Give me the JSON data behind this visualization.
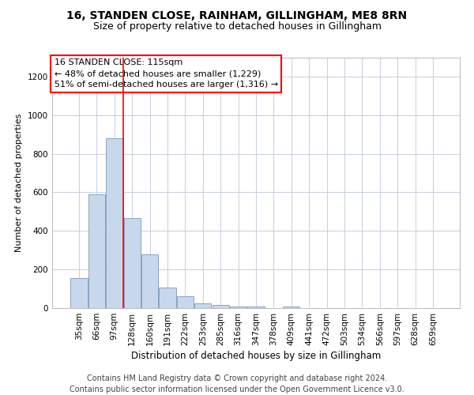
{
  "title_line1": "16, STANDEN CLOSE, RAINHAM, GILLINGHAM, ME8 8RN",
  "title_line2": "Size of property relative to detached houses in Gillingham",
  "xlabel": "Distribution of detached houses by size in Gillingham",
  "ylabel": "Number of detached properties",
  "categories": [
    "35sqm",
    "66sqm",
    "97sqm",
    "128sqm",
    "160sqm",
    "191sqm",
    "222sqm",
    "253sqm",
    "285sqm",
    "316sqm",
    "347sqm",
    "378sqm",
    "409sqm",
    "441sqm",
    "472sqm",
    "503sqm",
    "534sqm",
    "566sqm",
    "597sqm",
    "628sqm",
    "659sqm"
  ],
  "values": [
    155,
    590,
    880,
    465,
    280,
    105,
    60,
    25,
    18,
    10,
    8,
    0,
    10,
    0,
    0,
    0,
    0,
    0,
    0,
    0,
    0
  ],
  "bar_color": "#c8d8ec",
  "bar_edge_color": "#7799bb",
  "red_line_x": 2.5,
  "annotation_box_text": "16 STANDEN CLOSE: 115sqm\n← 48% of detached houses are smaller (1,229)\n51% of semi-detached houses are larger (1,316) →",
  "ylim": [
    0,
    1300
  ],
  "yticks": [
    0,
    200,
    400,
    600,
    800,
    1000,
    1200
  ],
  "footer_line1": "Contains HM Land Registry data © Crown copyright and database right 2024.",
  "footer_line2": "Contains public sector information licensed under the Open Government Licence v3.0.",
  "background_color": "#ffffff",
  "grid_color": "#c8d0dc",
  "title1_fontsize": 10,
  "title2_fontsize": 9,
  "xlabel_fontsize": 8.5,
  "ylabel_fontsize": 8,
  "footer_fontsize": 7,
  "tick_fontsize": 7.5,
  "annot_fontsize": 8
}
